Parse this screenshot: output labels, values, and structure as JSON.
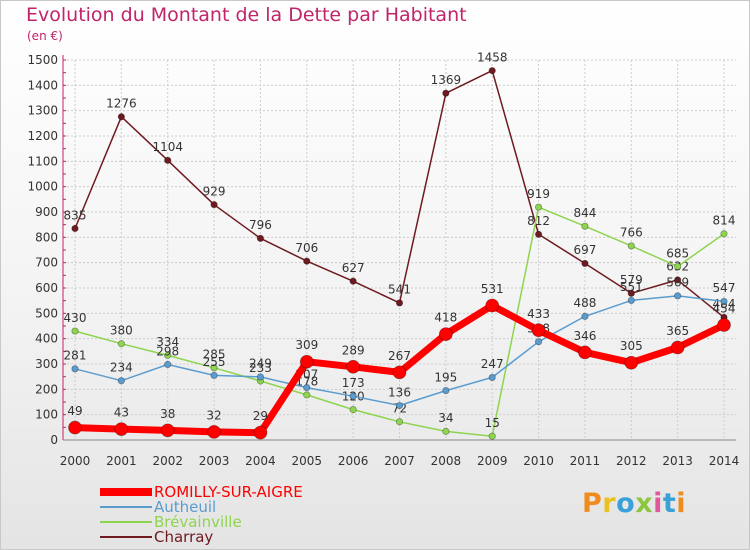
{
  "title": "Evolution du Montant de la Dette par Habitant",
  "unit": "(en €)",
  "logo": {
    "text": "Proxiti",
    "colors": [
      "#f08c1e",
      "#e8c21e",
      "#3aa0d8",
      "#8cc63f",
      "#e05a9b",
      "#3aa0d8",
      "#f08c1e"
    ]
  },
  "chart_data": {
    "type": "line",
    "x": [
      2000,
      2001,
      2002,
      2003,
      2004,
      2005,
      2006,
      2007,
      2008,
      2009,
      2010,
      2011,
      2012,
      2013,
      2014
    ],
    "ylim": [
      0,
      1500
    ],
    "yticks": [
      0,
      100,
      200,
      300,
      400,
      500,
      600,
      700,
      800,
      900,
      1000,
      1100,
      1200,
      1300,
      1400,
      1500
    ],
    "grid": true,
    "legend_position": "bottom-left",
    "series": [
      {
        "name": "Charray",
        "color": "#6e1a1f",
        "values": [
          835,
          1276,
          1104,
          929,
          796,
          706,
          627,
          541,
          1369,
          1458,
          812,
          697,
          579,
          632,
          484
        ]
      },
      {
        "name": "Brévainville",
        "color": "#8ed44e",
        "values": [
          430,
          380,
          334,
          285,
          233,
          178,
          120,
          72,
          34,
          15,
          919,
          844,
          766,
          685,
          814
        ]
      },
      {
        "name": "Autheuil",
        "color": "#5b9ccf",
        "values": [
          281,
          234,
          298,
          255,
          249,
          207,
          173,
          136,
          195,
          247,
          388,
          488,
          551,
          569,
          547
        ]
      },
      {
        "name": "ROMILLY-SUR-AIGRE",
        "color": "#ff0000",
        "values": [
          49,
          43,
          38,
          32,
          29,
          309,
          289,
          267,
          418,
          531,
          433,
          346,
          305,
          365,
          454
        ]
      }
    ]
  }
}
